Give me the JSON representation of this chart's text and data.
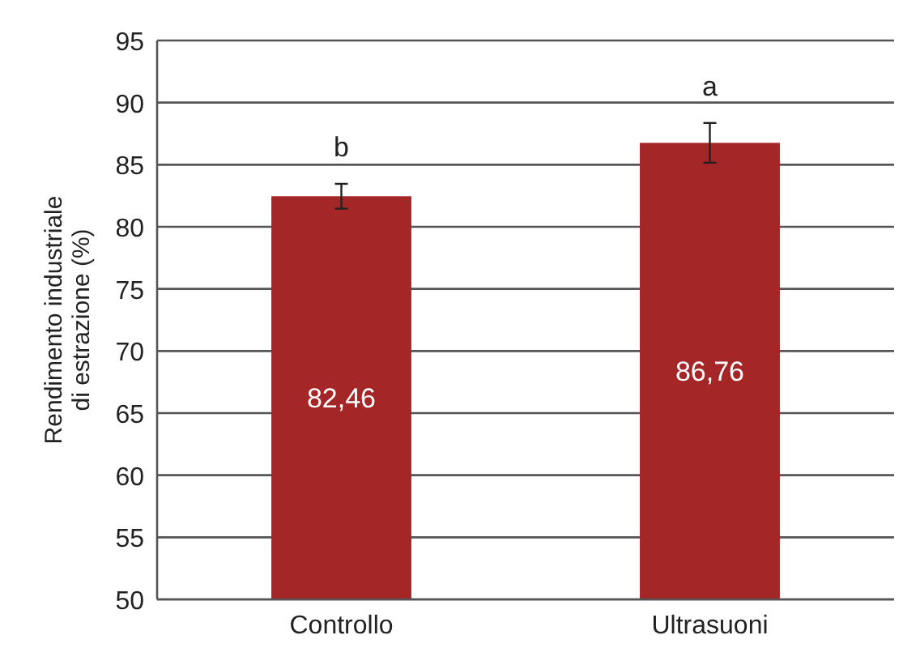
{
  "chart_data": {
    "type": "bar",
    "ylabel": "Rendimento industriale\ndi estrazione (%)",
    "categories": [
      "Controllo",
      "Ultrasuoni"
    ],
    "values": [
      82.46,
      86.76
    ],
    "value_labels": [
      "82,46",
      "86,76"
    ],
    "color": "#a52626",
    "errors": [
      1.0,
      1.6
    ],
    "ylim": [
      50,
      95
    ],
    "yticks": [
      50,
      55,
      60,
      65,
      70,
      75,
      80,
      85,
      90,
      95
    ],
    "grid": "y",
    "annotations": [
      "b",
      "a"
    ]
  }
}
